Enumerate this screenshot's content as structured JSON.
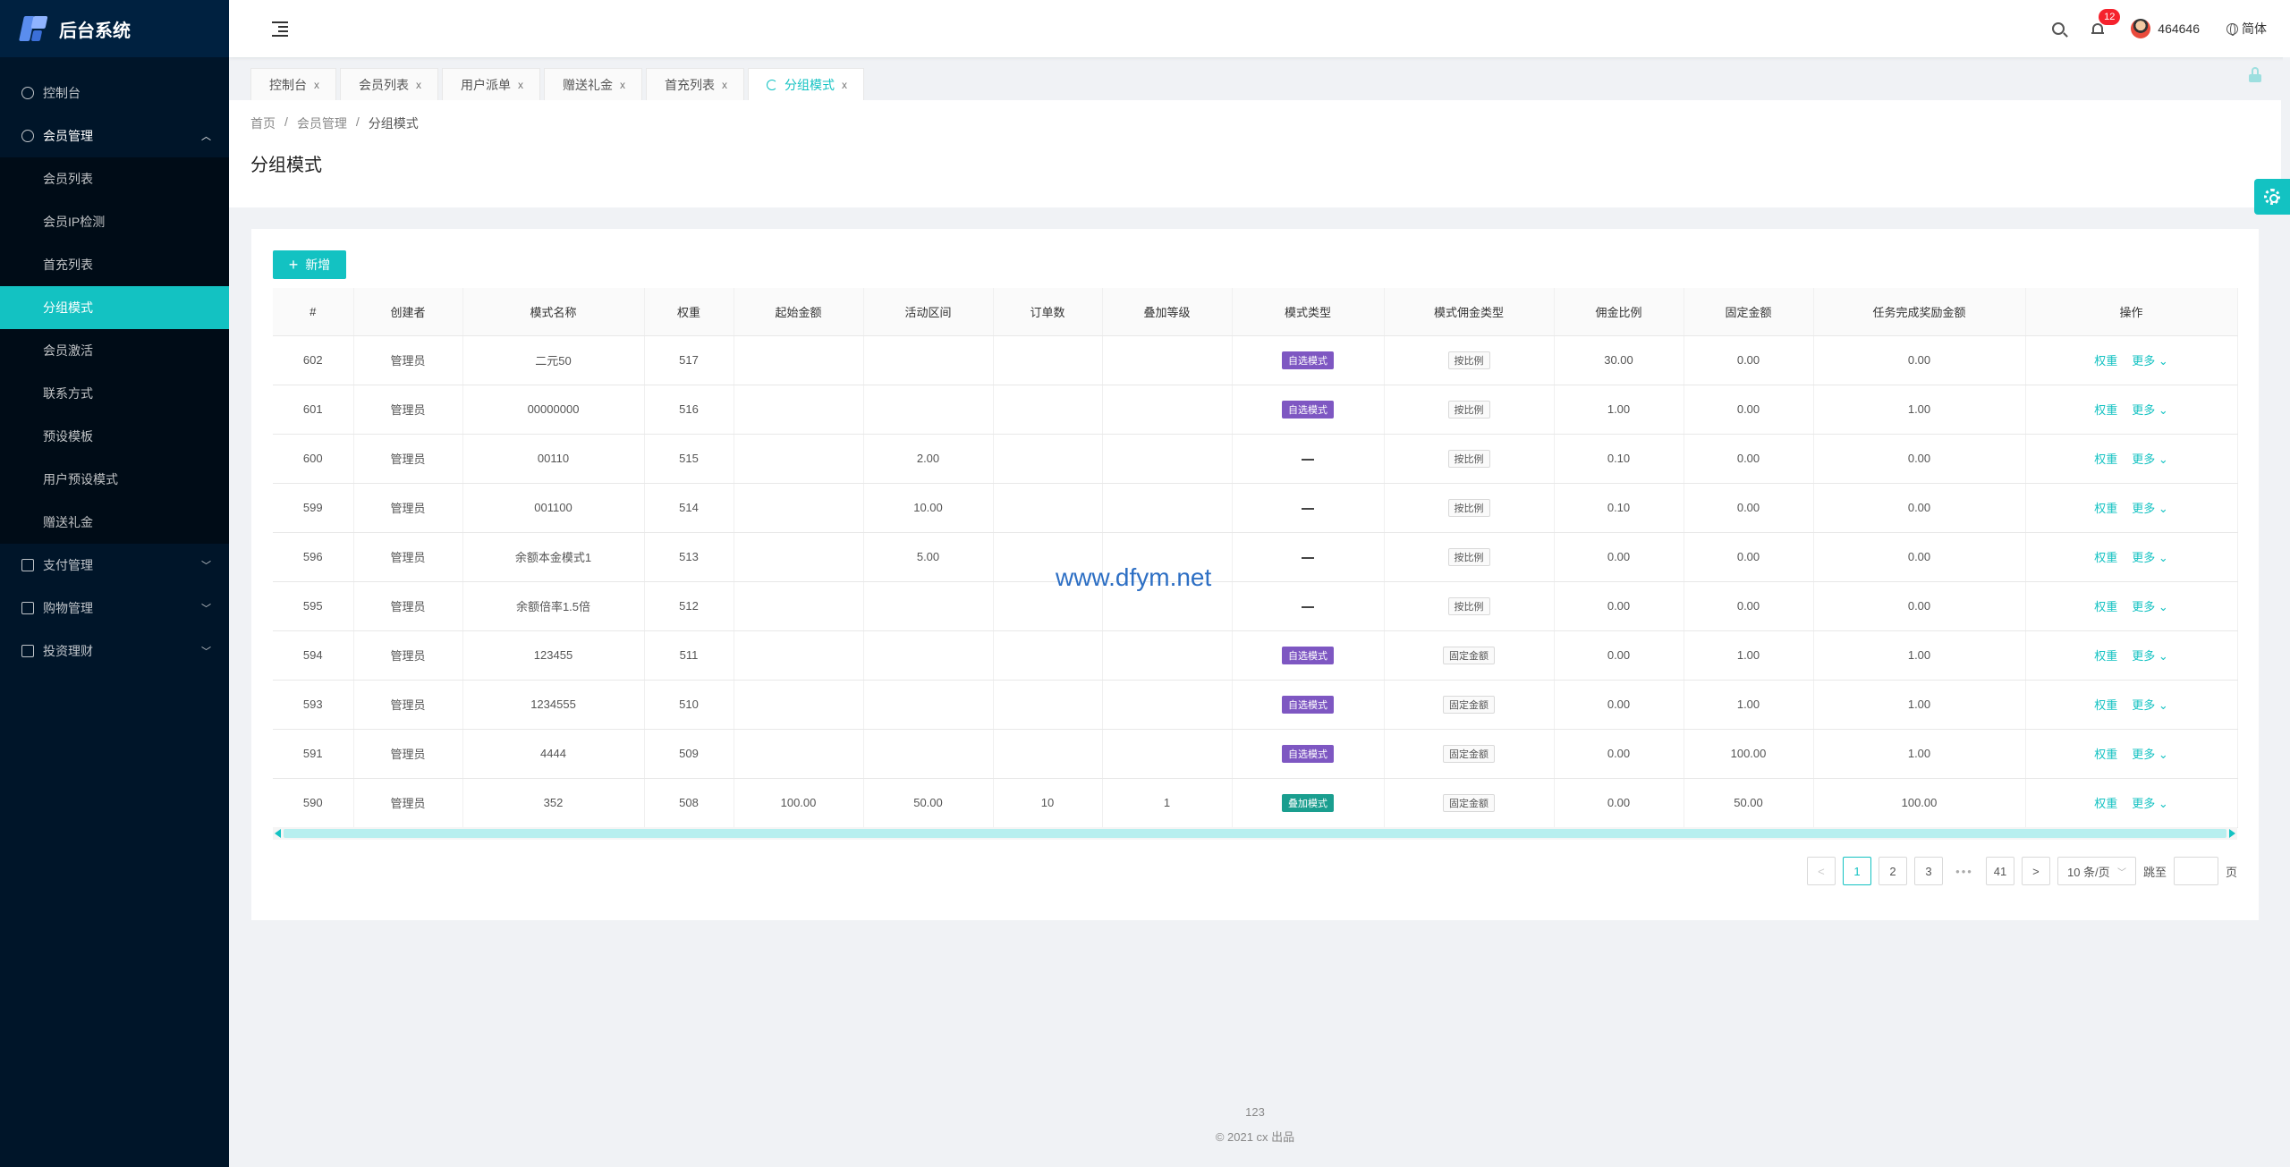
{
  "app": {
    "title": "后台系统"
  },
  "sidebar": {
    "items": [
      {
        "label": "控制台",
        "icon": "dashboard-icon"
      },
      {
        "label": "会员管理",
        "icon": "user-icon",
        "open": true,
        "children": [
          "会员列表",
          "会员IP检测",
          "首充列表",
          "分组模式",
          "会员激活",
          "联系方式",
          "预设模板",
          "用户预设模式",
          "赠送礼金"
        ]
      },
      {
        "label": "支付管理",
        "icon": "payment-icon"
      },
      {
        "label": "购物管理",
        "icon": "shopping-icon"
      },
      {
        "label": "投资理财",
        "icon": "invest-icon"
      }
    ],
    "active_child": "分组模式"
  },
  "header": {
    "notification_count": "12",
    "username": "464646",
    "language": "简体"
  },
  "tabs": [
    {
      "label": "控制台",
      "close": "x"
    },
    {
      "label": "会员列表",
      "close": "x"
    },
    {
      "label": "用户派单",
      "close": "x"
    },
    {
      "label": "赠送礼金",
      "close": "x"
    },
    {
      "label": "首充列表",
      "close": "x"
    },
    {
      "label": "分组模式",
      "close": "x",
      "active": true
    }
  ],
  "breadcrumb": [
    "首页",
    "会员管理",
    "分组模式"
  ],
  "breadcrumb_sep": "/",
  "page_title": "分组模式",
  "add_button": {
    "icon": "+",
    "label": "新增"
  },
  "table": {
    "columns": [
      "#",
      "创建者",
      "模式名称",
      "权重",
      "起始金额",
      "活动区间",
      "订单数",
      "叠加等级",
      "模式类型",
      "模式佣金类型",
      "佣金比例",
      "固定金额",
      "任务完成奖励金额",
      "操作"
    ],
    "rows": [
      [
        "602",
        "管理员",
        "二元50",
        "517",
        "",
        "",
        "",
        "",
        "自选模式",
        "按比例",
        "30.00",
        "0.00",
        "0.00"
      ],
      [
        "601",
        "管理员",
        "00000000",
        "516",
        "",
        "",
        "",
        "",
        "自选模式",
        "按比例",
        "1.00",
        "0.00",
        "1.00"
      ],
      [
        "600",
        "管理员",
        "00110",
        "515",
        "",
        "2.00",
        "",
        "",
        "—",
        "按比例",
        "0.10",
        "0.00",
        "0.00"
      ],
      [
        "599",
        "管理员",
        "001100",
        "514",
        "",
        "10.00",
        "",
        "",
        "—",
        "按比例",
        "0.10",
        "0.00",
        "0.00"
      ],
      [
        "596",
        "管理员",
        "余额本金模式1",
        "513",
        "",
        "5.00",
        "",
        "",
        "—",
        "按比例",
        "0.00",
        "0.00",
        "0.00"
      ],
      [
        "595",
        "管理员",
        "余额倍率1.5倍",
        "512",
        "",
        "",
        "",
        "",
        "—",
        "按比例",
        "0.00",
        "0.00",
        "0.00"
      ],
      [
        "594",
        "管理员",
        "123455",
        "511",
        "",
        "",
        "",
        "",
        "自选模式",
        "固定金额",
        "0.00",
        "1.00",
        "1.00"
      ],
      [
        "593",
        "管理员",
        "1234555",
        "510",
        "",
        "",
        "",
        "",
        "自选模式",
        "固定金额",
        "0.00",
        "1.00",
        "1.00"
      ],
      [
        "591",
        "管理员",
        "4444",
        "509",
        "",
        "",
        "",
        "",
        "自选模式",
        "固定金额",
        "0.00",
        "100.00",
        "1.00"
      ],
      [
        "590",
        "管理员",
        "352",
        "508",
        "100.00",
        "50.00",
        "10",
        "1",
        "叠加模式",
        "固定金额",
        "0.00",
        "50.00",
        "100.00"
      ]
    ],
    "actions": {
      "weight": "权重",
      "more": "更多 ⌄"
    }
  },
  "pagination": {
    "prev": "<",
    "next": ">",
    "pages": [
      "1",
      "2",
      "3"
    ],
    "dots": "•••",
    "last": "41",
    "current": "1",
    "page_size": "10 条/页",
    "jump_label": "跳至",
    "jump_suffix": "页"
  },
  "watermark": "www.dfym.net",
  "footer": {
    "line1": "123",
    "line2": "© 2021 cx 出品"
  },
  "colors": {
    "accent": "#13c2c2",
    "sidebar_bg": "#001529",
    "tag_purple": "#7e57c2",
    "tag_teal": "#1a9e8f"
  }
}
